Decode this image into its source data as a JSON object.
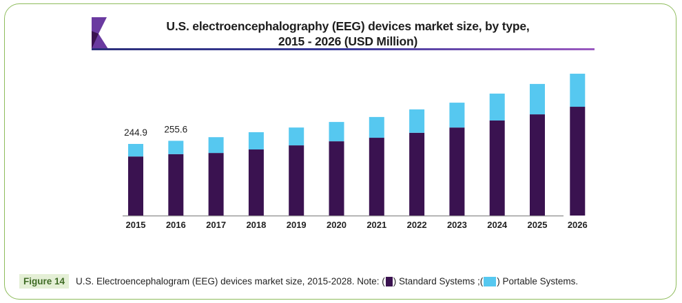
{
  "chart_data": {
    "type": "bar",
    "stacked": true,
    "title": "U.S. electroencephalography (EEG) devices market size, by type, 2015 - 2026 (USD Million)",
    "title_lines": [
      "U.S. electroencephalography (EEG) devices market size, by type,",
      "2015 - 2026 (USD Million)"
    ],
    "xlabel": "",
    "ylabel": "",
    "categories": [
      "2015",
      "2016",
      "2017",
      "2018",
      "2019",
      "2020",
      "2021",
      "2022",
      "2023",
      "2024",
      "2025",
      "2026"
    ],
    "series": [
      {
        "name": "Standard Systems",
        "color": "#3a1250",
        "values": [
          202,
          210,
          214,
          226,
          240,
          254,
          266,
          283,
          301,
          325,
          346,
          372
        ]
      },
      {
        "name": "Portable Systems",
        "color": "#56c8f0",
        "values": [
          42.9,
          45.6,
          54,
          59,
          61,
          66,
          71,
          80,
          85,
          92,
          104,
          113
        ]
      }
    ],
    "data_labels": [
      {
        "category": "2015",
        "text": "244.9"
      },
      {
        "category": "2016",
        "text": "255.6"
      }
    ],
    "ylim": [
      0,
      520
    ],
    "grid": false,
    "y_axis_visible": false
  },
  "caption": {
    "figure_label": "Figure 14",
    "text_before": "U.S. Electroencephalogram (EEG) devices market size, 2015-2028. Note: (",
    "text_middle": ") Standard Systems ;(",
    "text_after": ") Portable Systems."
  }
}
